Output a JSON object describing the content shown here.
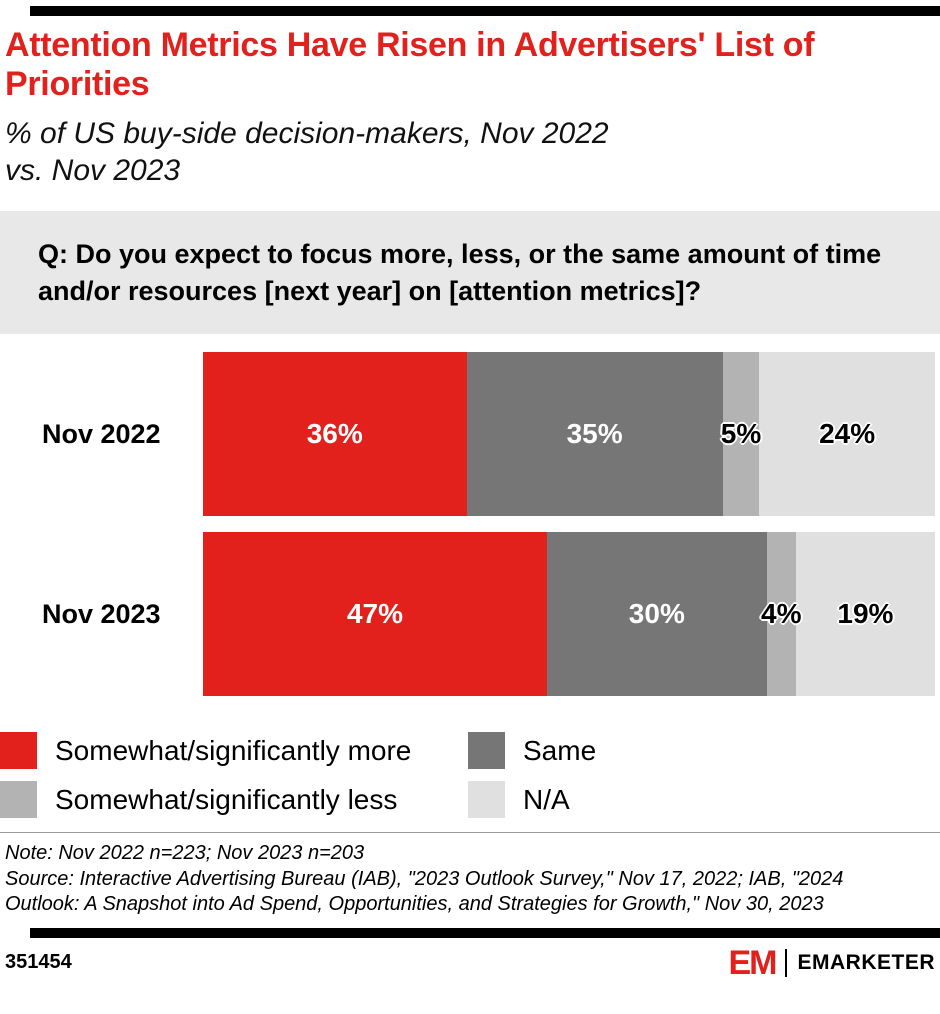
{
  "header": {
    "title": "Attention Metrics Have Risen in Advertisers' List of Priorities",
    "subtitle": "% of US buy-side decision-makers, Nov 2022 vs. Nov 2023"
  },
  "question": "Q: Do you expect to focus more, less, or the same amount of time and/or resources [next year] on [attention metrics]?",
  "chart_data": {
    "type": "bar",
    "stacked": true,
    "orientation": "horizontal",
    "categories": [
      "Nov 2022",
      "Nov 2023"
    ],
    "series": [
      {
        "name": "Somewhat/significantly more",
        "values": [
          36,
          47
        ],
        "color": "#e2211c",
        "label_color": "#ffffff"
      },
      {
        "name": "Same",
        "values": [
          35,
          30
        ],
        "color": "#767676",
        "label_color": "#ffffff"
      },
      {
        "name": "Somewhat/significantly less",
        "values": [
          5,
          4
        ],
        "color": "#b3b3b3",
        "label_color": "#000000"
      },
      {
        "name": "N/A",
        "values": [
          24,
          19
        ],
        "color": "#e0e0e0",
        "label_color": "#000000"
      }
    ],
    "value_suffix": "%",
    "xlim": [
      0,
      100
    ],
    "grid": false,
    "legend_position": "bottom"
  },
  "footnote": {
    "note": "Note: Nov 2022 n=223; Nov 2023 n=203",
    "source": "Source: Interactive Advertising Bureau (IAB), \"2023 Outlook Survey,\" Nov 17, 2022; IAB, \"2024 Outlook: A Snapshot into Ad Spend, Opportunities, and Strategies for Growth,\" Nov 30, 2023"
  },
  "footer": {
    "chart_id": "351454",
    "brand_mark": "EM",
    "brand_name": "EMARKETER"
  },
  "colors": {
    "accent_red": "#e2211c",
    "question_bg": "#e8e8e8",
    "divider_black": "#000000"
  }
}
